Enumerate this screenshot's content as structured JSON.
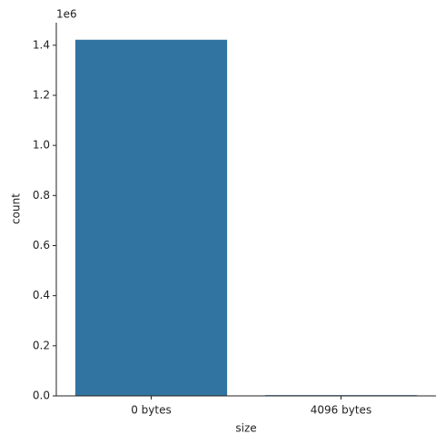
{
  "chart_data": {
    "type": "bar",
    "x_label": "size",
    "y_label": "count",
    "y_offset_label": "1e6",
    "categories": [
      "0 bytes",
      "4096 bytes"
    ],
    "values": [
      1422000,
      3000
    ],
    "color": "#3274a1",
    "ylim": [
      0,
      1490000
    ],
    "yticks": [
      {
        "value": 0,
        "label": "0.0"
      },
      {
        "value": 200000,
        "label": "0.2"
      },
      {
        "value": 400000,
        "label": "0.4"
      },
      {
        "value": 600000,
        "label": "0.6"
      },
      {
        "value": 800000,
        "label": "0.8"
      },
      {
        "value": 1000000,
        "label": "1.0"
      },
      {
        "value": 1200000,
        "label": "1.2"
      },
      {
        "value": 1400000,
        "label": "1.4"
      }
    ],
    "grid": false
  }
}
